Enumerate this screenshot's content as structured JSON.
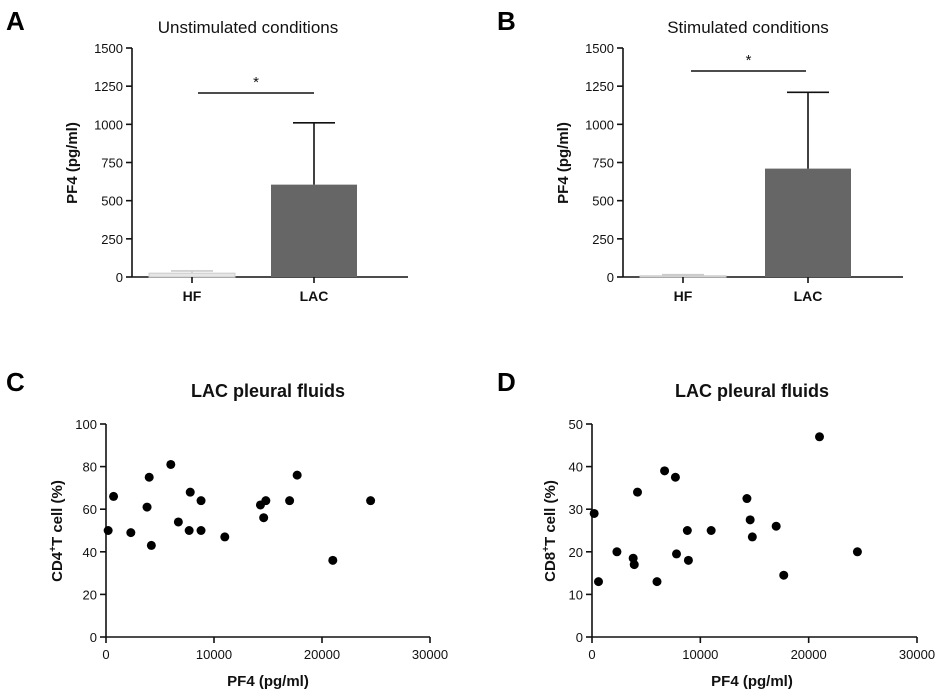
{
  "colors": {
    "bar_fill": "#666666",
    "point_fill": "#000000",
    "axis": "#111111"
  },
  "chart_data": [
    {
      "panel": "A",
      "type": "bar",
      "title": "Unstimulated conditions",
      "ylabel": "PF4 (pg/ml)",
      "xlabel": "",
      "categories": [
        "HF",
        "LAC"
      ],
      "values": [
        25,
        605
      ],
      "error_upper": [
        40,
        1010
      ],
      "ylim": [
        0,
        1500
      ],
      "yticks": [
        "0",
        "250",
        "500",
        "750",
        "1000",
        "1250",
        "1500"
      ],
      "significance": {
        "from": "HF",
        "to": "LAC",
        "label": "*"
      },
      "grid": false
    },
    {
      "panel": "B",
      "type": "bar",
      "title": "Stimulated conditions",
      "ylabel": "PF4 (pg/ml)",
      "xlabel": "",
      "categories": [
        "HF",
        "LAC"
      ],
      "values": [
        8,
        710
      ],
      "error_upper": [
        15,
        1210
      ],
      "ylim": [
        0,
        1500
      ],
      "yticks": [
        "0",
        "250",
        "500",
        "750",
        "1000",
        "1250",
        "1500"
      ],
      "significance": {
        "from": "HF",
        "to": "LAC",
        "label": "*"
      },
      "grid": false
    },
    {
      "panel": "C",
      "type": "scatter",
      "title": "LAC pleural fluids",
      "xlabel": "PF4 (pg/ml)",
      "ylabel_prefix": "CD4",
      "ylabel_sup": "+",
      "ylabel_suffix": "T cell (%)",
      "xlim": [
        0,
        30000
      ],
      "ylim": [
        0,
        100
      ],
      "xticks": [
        "0",
        "10000",
        "20000",
        "30000"
      ],
      "yticks": [
        "0",
        "20",
        "40",
        "60",
        "80",
        "100"
      ],
      "points": [
        [
          200,
          50
        ],
        [
          700,
          66
        ],
        [
          2300,
          49
        ],
        [
          3800,
          61
        ],
        [
          4000,
          75
        ],
        [
          4200,
          43
        ],
        [
          6000,
          81
        ],
        [
          6700,
          54
        ],
        [
          7700,
          50
        ],
        [
          7800,
          68
        ],
        [
          8800,
          64
        ],
        [
          8800,
          50
        ],
        [
          11000,
          47
        ],
        [
          14300,
          62
        ],
        [
          14600,
          56
        ],
        [
          14800,
          64
        ],
        [
          17000,
          64
        ],
        [
          17700,
          76
        ],
        [
          21000,
          36
        ],
        [
          24500,
          64
        ]
      ],
      "grid": false
    },
    {
      "panel": "D",
      "type": "scatter",
      "title": "LAC pleural fluids",
      "xlabel": "PF4 (pg/ml)",
      "ylabel_prefix": "CD8",
      "ylabel_sup": "+",
      "ylabel_suffix": "T cell (%)",
      "xlim": [
        0,
        30000
      ],
      "ylim": [
        0,
        50
      ],
      "xticks": [
        "0",
        "10000",
        "20000",
        "30000"
      ],
      "yticks": [
        "0",
        "10",
        "20",
        "30",
        "40",
        "50"
      ],
      "points": [
        [
          200,
          29
        ],
        [
          600,
          13
        ],
        [
          2300,
          20
        ],
        [
          3800,
          18.5
        ],
        [
          3900,
          17
        ],
        [
          4200,
          34
        ],
        [
          6000,
          13
        ],
        [
          6700,
          39
        ],
        [
          7700,
          37.5
        ],
        [
          7800,
          19.5
        ],
        [
          8800,
          25
        ],
        [
          8900,
          18
        ],
        [
          11000,
          25
        ],
        [
          14300,
          32.5
        ],
        [
          14600,
          27.5
        ],
        [
          14800,
          23.5
        ],
        [
          17000,
          26
        ],
        [
          17700,
          14.5
        ],
        [
          21000,
          47
        ],
        [
          24500,
          20
        ]
      ],
      "grid": false
    }
  ]
}
